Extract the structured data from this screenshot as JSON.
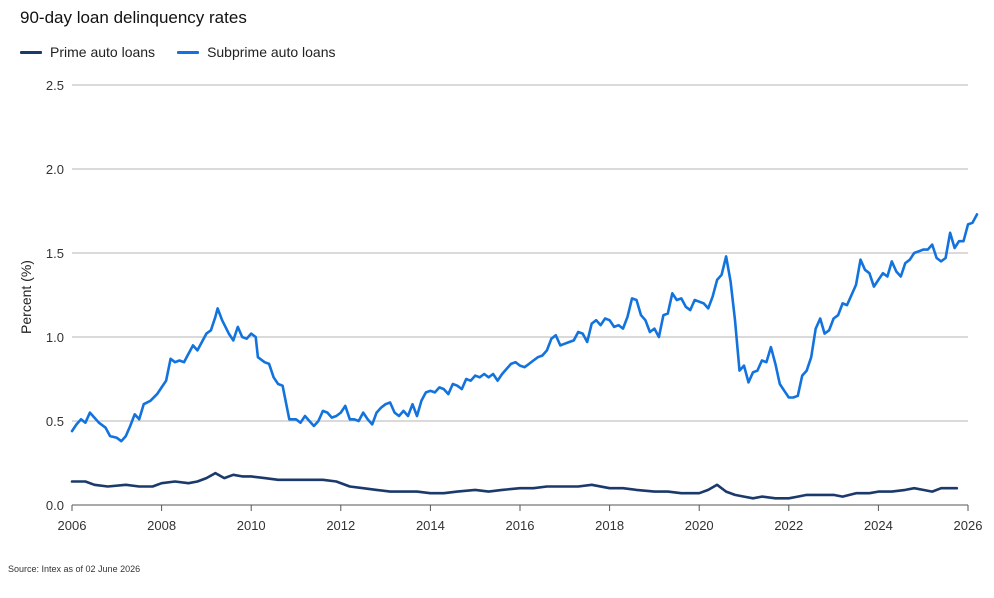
{
  "colors": {
    "prime": "#1b3a6b",
    "subprime": "#1273de",
    "grid": "#b4b4b4",
    "axis": "#555555"
  },
  "source": "Source: Intex as of 02 June 2026",
  "chart_data": {
    "type": "line",
    "title": "90-day loan delinquency rates",
    "xlabel": "",
    "ylabel": "Percent (%)",
    "xlim": [
      2006,
      2026
    ],
    "ylim": [
      0,
      2.5
    ],
    "x_ticks": [
      "2006",
      "2008",
      "2010",
      "2012",
      "2014",
      "2016",
      "2018",
      "2020",
      "2022",
      "2024",
      "2026"
    ],
    "y_ticks": [
      "0.0",
      "0.5",
      "1.0",
      "1.5",
      "2.0",
      "2.5"
    ],
    "grid": "horizontal",
    "legend": "top-left",
    "series": [
      {
        "name": "Prime auto loans",
        "color": "#1b3a6b",
        "points": [
          [
            2006.0,
            0.14
          ],
          [
            2006.3,
            0.14
          ],
          [
            2006.5,
            0.12
          ],
          [
            2006.8,
            0.11
          ],
          [
            2007.2,
            0.12
          ],
          [
            2007.5,
            0.11
          ],
          [
            2007.8,
            0.11
          ],
          [
            2008.0,
            0.13
          ],
          [
            2008.3,
            0.14
          ],
          [
            2008.6,
            0.13
          ],
          [
            2008.8,
            0.14
          ],
          [
            2009.0,
            0.16
          ],
          [
            2009.2,
            0.19
          ],
          [
            2009.4,
            0.16
          ],
          [
            2009.6,
            0.18
          ],
          [
            2009.8,
            0.17
          ],
          [
            2010.0,
            0.17
          ],
          [
            2010.3,
            0.16
          ],
          [
            2010.6,
            0.15
          ],
          [
            2011.0,
            0.15
          ],
          [
            2011.3,
            0.15
          ],
          [
            2011.6,
            0.15
          ],
          [
            2011.9,
            0.14
          ],
          [
            2012.2,
            0.11
          ],
          [
            2012.5,
            0.1
          ],
          [
            2012.8,
            0.09
          ],
          [
            2013.1,
            0.08
          ],
          [
            2013.4,
            0.08
          ],
          [
            2013.7,
            0.08
          ],
          [
            2014.0,
            0.07
          ],
          [
            2014.3,
            0.07
          ],
          [
            2014.6,
            0.08
          ],
          [
            2015.0,
            0.09
          ],
          [
            2015.3,
            0.08
          ],
          [
            2015.6,
            0.09
          ],
          [
            2016.0,
            0.1
          ],
          [
            2016.3,
            0.1
          ],
          [
            2016.6,
            0.11
          ],
          [
            2017.0,
            0.11
          ],
          [
            2017.3,
            0.11
          ],
          [
            2017.6,
            0.12
          ],
          [
            2018.0,
            0.1
          ],
          [
            2018.3,
            0.1
          ],
          [
            2018.6,
            0.09
          ],
          [
            2019.0,
            0.08
          ],
          [
            2019.3,
            0.08
          ],
          [
            2019.6,
            0.07
          ],
          [
            2020.0,
            0.07
          ],
          [
            2020.2,
            0.09
          ],
          [
            2020.4,
            0.12
          ],
          [
            2020.6,
            0.08
          ],
          [
            2020.8,
            0.06
          ],
          [
            2021.0,
            0.05
          ],
          [
            2021.2,
            0.04
          ],
          [
            2021.4,
            0.05
          ],
          [
            2021.7,
            0.04
          ],
          [
            2022.0,
            0.04
          ],
          [
            2022.2,
            0.05
          ],
          [
            2022.4,
            0.06
          ],
          [
            2022.7,
            0.06
          ],
          [
            2023.0,
            0.06
          ],
          [
            2023.2,
            0.05
          ],
          [
            2023.5,
            0.07
          ],
          [
            2023.8,
            0.07
          ],
          [
            2024.0,
            0.08
          ],
          [
            2024.3,
            0.08
          ],
          [
            2024.6,
            0.09
          ],
          [
            2024.8,
            0.1
          ],
          [
            2025.0,
            0.09
          ],
          [
            2025.2,
            0.08
          ],
          [
            2025.4,
            0.1
          ],
          [
            2025.6,
            0.1
          ],
          [
            2025.75,
            0.1
          ]
        ]
      },
      {
        "name": "Subprime auto loans",
        "color": "#1273de",
        "points": [
          [
            2006.0,
            0.44
          ],
          [
            2006.1,
            0.48
          ],
          [
            2006.2,
            0.51
          ],
          [
            2006.3,
            0.49
          ],
          [
            2006.4,
            0.55
          ],
          [
            2006.5,
            0.52
          ],
          [
            2006.6,
            0.49
          ],
          [
            2006.75,
            0.46
          ],
          [
            2006.85,
            0.41
          ],
          [
            2007.0,
            0.4
          ],
          [
            2007.1,
            0.38
          ],
          [
            2007.2,
            0.41
          ],
          [
            2007.3,
            0.47
          ],
          [
            2007.4,
            0.54
          ],
          [
            2007.5,
            0.51
          ],
          [
            2007.6,
            0.6
          ],
          [
            2007.75,
            0.62
          ],
          [
            2007.9,
            0.66
          ],
          [
            2008.0,
            0.7
          ],
          [
            2008.1,
            0.74
          ],
          [
            2008.2,
            0.87
          ],
          [
            2008.3,
            0.85
          ],
          [
            2008.4,
            0.86
          ],
          [
            2008.5,
            0.85
          ],
          [
            2008.6,
            0.9
          ],
          [
            2008.7,
            0.95
          ],
          [
            2008.8,
            0.92
          ],
          [
            2008.9,
            0.97
          ],
          [
            2009.0,
            1.02
          ],
          [
            2009.1,
            1.04
          ],
          [
            2009.2,
            1.12
          ],
          [
            2009.25,
            1.17
          ],
          [
            2009.35,
            1.1
          ],
          [
            2009.5,
            1.02
          ],
          [
            2009.6,
            0.98
          ],
          [
            2009.7,
            1.06
          ],
          [
            2009.8,
            1.0
          ],
          [
            2009.9,
            0.99
          ],
          [
            2010.0,
            1.02
          ],
          [
            2010.1,
            1.0
          ],
          [
            2010.15,
            0.88
          ],
          [
            2010.3,
            0.85
          ],
          [
            2010.4,
            0.84
          ],
          [
            2010.5,
            0.76
          ],
          [
            2010.6,
            0.72
          ],
          [
            2010.7,
            0.71
          ],
          [
            2010.85,
            0.51
          ],
          [
            2011.0,
            0.51
          ],
          [
            2011.1,
            0.49
          ],
          [
            2011.2,
            0.53
          ],
          [
            2011.3,
            0.5
          ],
          [
            2011.4,
            0.47
          ],
          [
            2011.5,
            0.5
          ],
          [
            2011.6,
            0.56
          ],
          [
            2011.7,
            0.55
          ],
          [
            2011.8,
            0.52
          ],
          [
            2011.9,
            0.53
          ],
          [
            2012.0,
            0.55
          ],
          [
            2012.1,
            0.59
          ],
          [
            2012.2,
            0.51
          ],
          [
            2012.3,
            0.51
          ],
          [
            2012.4,
            0.5
          ],
          [
            2012.5,
            0.55
          ],
          [
            2012.6,
            0.51
          ],
          [
            2012.7,
            0.48
          ],
          [
            2012.8,
            0.55
          ],
          [
            2012.9,
            0.58
          ],
          [
            2013.0,
            0.6
          ],
          [
            2013.1,
            0.61
          ],
          [
            2013.2,
            0.55
          ],
          [
            2013.3,
            0.53
          ],
          [
            2013.4,
            0.56
          ],
          [
            2013.5,
            0.53
          ],
          [
            2013.6,
            0.6
          ],
          [
            2013.7,
            0.53
          ],
          [
            2013.8,
            0.62
          ],
          [
            2013.9,
            0.67
          ],
          [
            2014.0,
            0.68
          ],
          [
            2014.1,
            0.67
          ],
          [
            2014.2,
            0.7
          ],
          [
            2014.3,
            0.69
          ],
          [
            2014.4,
            0.66
          ],
          [
            2014.5,
            0.72
          ],
          [
            2014.6,
            0.71
          ],
          [
            2014.7,
            0.69
          ],
          [
            2014.8,
            0.75
          ],
          [
            2014.9,
            0.74
          ],
          [
            2015.0,
            0.77
          ],
          [
            2015.1,
            0.76
          ],
          [
            2015.2,
            0.78
          ],
          [
            2015.3,
            0.76
          ],
          [
            2015.4,
            0.78
          ],
          [
            2015.5,
            0.74
          ],
          [
            2015.6,
            0.78
          ],
          [
            2015.7,
            0.81
          ],
          [
            2015.8,
            0.84
          ],
          [
            2015.9,
            0.85
          ],
          [
            2016.0,
            0.83
          ],
          [
            2016.1,
            0.82
          ],
          [
            2016.2,
            0.84
          ],
          [
            2016.3,
            0.86
          ],
          [
            2016.4,
            0.88
          ],
          [
            2016.5,
            0.89
          ],
          [
            2016.6,
            0.92
          ],
          [
            2016.7,
            0.99
          ],
          [
            2016.8,
            1.01
          ],
          [
            2016.9,
            0.95
          ],
          [
            2017.0,
            0.96
          ],
          [
            2017.1,
            0.97
          ],
          [
            2017.2,
            0.98
          ],
          [
            2017.3,
            1.03
          ],
          [
            2017.4,
            1.02
          ],
          [
            2017.5,
            0.97
          ],
          [
            2017.6,
            1.08
          ],
          [
            2017.7,
            1.1
          ],
          [
            2017.8,
            1.07
          ],
          [
            2017.9,
            1.11
          ],
          [
            2018.0,
            1.1
          ],
          [
            2018.1,
            1.06
          ],
          [
            2018.2,
            1.07
          ],
          [
            2018.3,
            1.05
          ],
          [
            2018.4,
            1.12
          ],
          [
            2018.5,
            1.23
          ],
          [
            2018.6,
            1.22
          ],
          [
            2018.7,
            1.13
          ],
          [
            2018.8,
            1.1
          ],
          [
            2018.9,
            1.03
          ],
          [
            2019.0,
            1.05
          ],
          [
            2019.1,
            1.0
          ],
          [
            2019.2,
            1.13
          ],
          [
            2019.3,
            1.14
          ],
          [
            2019.4,
            1.26
          ],
          [
            2019.5,
            1.22
          ],
          [
            2019.6,
            1.23
          ],
          [
            2019.7,
            1.18
          ],
          [
            2019.8,
            1.16
          ],
          [
            2019.9,
            1.22
          ],
          [
            2020.0,
            1.21
          ],
          [
            2020.1,
            1.2
          ],
          [
            2020.2,
            1.17
          ],
          [
            2020.3,
            1.24
          ],
          [
            2020.4,
            1.34
          ],
          [
            2020.5,
            1.37
          ],
          [
            2020.6,
            1.48
          ],
          [
            2020.7,
            1.33
          ],
          [
            2020.8,
            1.1
          ],
          [
            2020.9,
            0.8
          ],
          [
            2021.0,
            0.83
          ],
          [
            2021.1,
            0.73
          ],
          [
            2021.2,
            0.79
          ],
          [
            2021.3,
            0.8
          ],
          [
            2021.4,
            0.86
          ],
          [
            2021.5,
            0.85
          ],
          [
            2021.6,
            0.94
          ],
          [
            2021.7,
            0.84
          ],
          [
            2021.8,
            0.72
          ],
          [
            2021.9,
            0.68
          ],
          [
            2022.0,
            0.64
          ],
          [
            2022.1,
            0.64
          ],
          [
            2022.2,
            0.65
          ],
          [
            2022.3,
            0.77
          ],
          [
            2022.4,
            0.8
          ],
          [
            2022.5,
            0.88
          ],
          [
            2022.6,
            1.05
          ],
          [
            2022.7,
            1.11
          ],
          [
            2022.8,
            1.02
          ],
          [
            2022.9,
            1.04
          ],
          [
            2023.0,
            1.11
          ],
          [
            2023.1,
            1.13
          ],
          [
            2023.2,
            1.2
          ],
          [
            2023.3,
            1.19
          ],
          [
            2023.4,
            1.25
          ],
          [
            2023.5,
            1.31
          ],
          [
            2023.6,
            1.46
          ],
          [
            2023.7,
            1.4
          ],
          [
            2023.8,
            1.38
          ],
          [
            2023.9,
            1.3
          ],
          [
            2024.0,
            1.34
          ],
          [
            2024.1,
            1.38
          ],
          [
            2024.2,
            1.36
          ],
          [
            2024.3,
            1.45
          ],
          [
            2024.4,
            1.39
          ],
          [
            2024.5,
            1.36
          ],
          [
            2024.6,
            1.44
          ],
          [
            2024.7,
            1.46
          ],
          [
            2024.8,
            1.5
          ],
          [
            2024.9,
            1.51
          ],
          [
            2025.0,
            1.52
          ],
          [
            2025.1,
            1.52
          ],
          [
            2025.2,
            1.55
          ],
          [
            2025.3,
            1.47
          ],
          [
            2025.4,
            1.45
          ],
          [
            2025.5,
            1.47
          ],
          [
            2025.6,
            1.62
          ],
          [
            2025.7,
            1.53
          ],
          [
            2025.8,
            1.57
          ],
          [
            2025.9,
            1.57
          ],
          [
            2026.0,
            1.67
          ],
          [
            2026.1,
            1.68
          ],
          [
            2026.2,
            1.73
          ]
        ]
      }
    ]
  }
}
